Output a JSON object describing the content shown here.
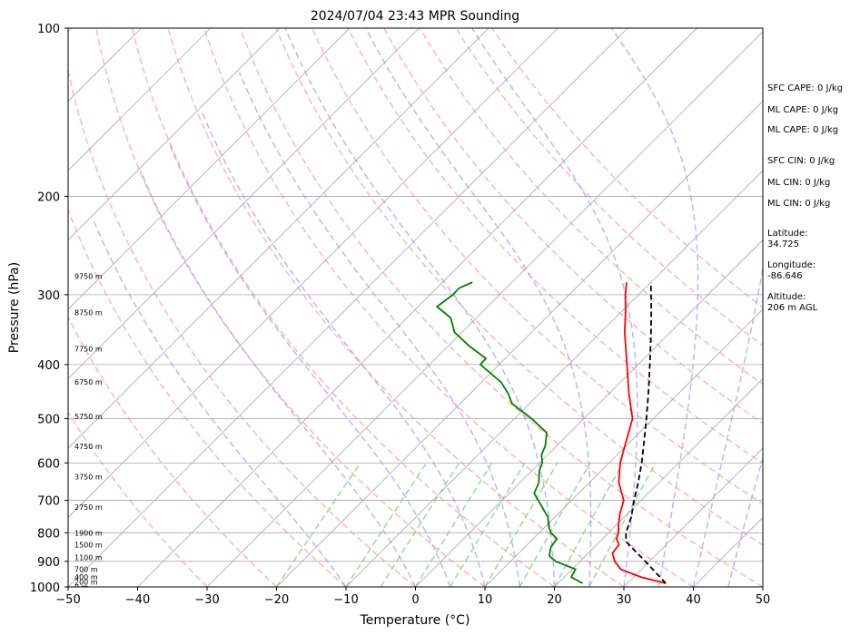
{
  "chart_data": {
    "type": "skew-t",
    "title": "2024/07/04 23:43 MPR Sounding",
    "xlabel": "Temperature (°C)",
    "ylabel": "Pressure (hPa)",
    "xlim": [
      -50,
      50
    ],
    "ylim": [
      1000,
      100
    ],
    "y_scale": "log",
    "grid": true,
    "x_ticks": [
      -50,
      -40,
      -30,
      -20,
      -10,
      0,
      10,
      20,
      30,
      40,
      50
    ],
    "x_tick_labels": [
      "−50",
      "−40",
      "−30",
      "−20",
      "−10",
      "0",
      "10",
      "20",
      "30",
      "40",
      "50"
    ],
    "y_ticks": [
      1000,
      900,
      800,
      700,
      600,
      500,
      400,
      300,
      200,
      100
    ],
    "y_tick_labels": [
      "1000",
      "900",
      "800",
      "700",
      "600",
      "500",
      "400",
      "300",
      "200",
      "100"
    ],
    "colors": {
      "temperature": "#ff0000",
      "dewpoint": "#008000",
      "parcel": "#000000",
      "dry_adiabats": "#ff9999",
      "moist_adiabats": "#9999ff",
      "mixing_ratio": "#88cc88",
      "isotherms": "#aaaaaa"
    },
    "series": [
      {
        "key": "temperature",
        "pressure": [
          985,
          960,
          930,
          900,
          870,
          840,
          820,
          800,
          770,
          740,
          700,
          650,
          600,
          550,
          500,
          450,
          400,
          350,
          320,
          300,
          285
        ],
        "values": [
          35.5,
          31.0,
          27.0,
          25.0,
          23.5,
          23.2,
          22.0,
          21.4,
          20.1,
          18.9,
          17.5,
          14.2,
          11.6,
          9.4,
          7.0,
          2.8,
          -1.6,
          -6.6,
          -9.6,
          -11.9,
          -13.5
        ]
      },
      {
        "key": "dewpoint",
        "pressure": [
          985,
          960,
          930,
          900,
          880,
          850,
          820,
          800,
          780,
          750,
          700,
          680,
          650,
          620,
          600,
          580,
          560,
          530,
          500,
          470,
          450,
          430,
          400,
          390,
          370,
          350,
          330,
          315,
          300,
          292,
          285
        ],
        "values": [
          23.5,
          21.0,
          20.5,
          16.5,
          14.8,
          13.8,
          13.4,
          11.7,
          10.5,
          9.0,
          5.2,
          3.6,
          2.7,
          1.1,
          0.4,
          -0.9,
          -1.6,
          -3.3,
          -7.5,
          -12.5,
          -14.6,
          -17.2,
          -22.7,
          -22.8,
          -27.1,
          -31.1,
          -33.7,
          -37.3,
          -36.7,
          -36.8,
          -35.7
        ]
      },
      {
        "key": "parcel",
        "pressure": [
          985,
          900,
          830,
          800,
          750,
          700,
          650,
          600,
          550,
          500,
          450,
          400,
          350,
          320,
          300,
          285
        ],
        "values": [
          35.5,
          29.4,
          23.8,
          22.5,
          21.0,
          19.0,
          17.0,
          14.7,
          12.0,
          9.0,
          5.6,
          1.7,
          -2.8,
          -5.9,
          -8.2,
          -10.0
        ]
      }
    ],
    "isotherm_values": [
      -130,
      -120,
      -110,
      -100,
      -90,
      -80,
      -70,
      -60,
      -50,
      -40,
      -30,
      -20,
      -10,
      0,
      10,
      20,
      30,
      40,
      50
    ],
    "dry_adiabat_thetas_c": [
      -30,
      -20,
      -10,
      0,
      10,
      20,
      30,
      40,
      50,
      60,
      70,
      80,
      90,
      100,
      110,
      120
    ],
    "moist_adiabat_start_c": [
      -10,
      0,
      5,
      10,
      15,
      20,
      25,
      30,
      35,
      40,
      45
    ],
    "mixing_ratio_start_c": [
      -20,
      -10,
      -5,
      0,
      5,
      10,
      15,
      20,
      25
    ],
    "height_labels": [
      {
        "p": 1000,
        "text": "0 m"
      },
      {
        "p": 980,
        "text": "200 m"
      },
      {
        "p": 960,
        "text": "400 m"
      },
      {
        "p": 930,
        "text": "700 m"
      },
      {
        "p": 885,
        "text": "1100 m"
      },
      {
        "p": 840,
        "text": "1500 m"
      },
      {
        "p": 800,
        "text": "1900 m"
      },
      {
        "p": 720,
        "text": "2750 m"
      },
      {
        "p": 635,
        "text": "3750 m"
      },
      {
        "p": 560,
        "text": "4750 m"
      },
      {
        "p": 495,
        "text": "5750 m"
      },
      {
        "p": 430,
        "text": "6750 m"
      },
      {
        "p": 375,
        "text": "7750 m"
      },
      {
        "p": 323,
        "text": "8750 m"
      },
      {
        "p": 278,
        "text": "9750 m"
      }
    ]
  },
  "side_panel": {
    "sfc_cape": "SFC CAPE: 0 J/kg",
    "ml_cape_1": "ML CAPE: 0 J/kg",
    "ml_cape_2": "ML CAPE: 0 J/kg",
    "sfc_cin": "SFC CIN: 0 J/kg",
    "ml_cin_1": "ML CIN: 0 J/kg",
    "ml_cin_2": "ML CIN: 0 J/kg",
    "latitude_label": "Latitude:",
    "latitude_value": "34.725",
    "longitude_label": "Longitude:",
    "longitude_value": "-86.646",
    "altitude_label": "Altitude:",
    "altitude_value": "206 m AGL"
  }
}
